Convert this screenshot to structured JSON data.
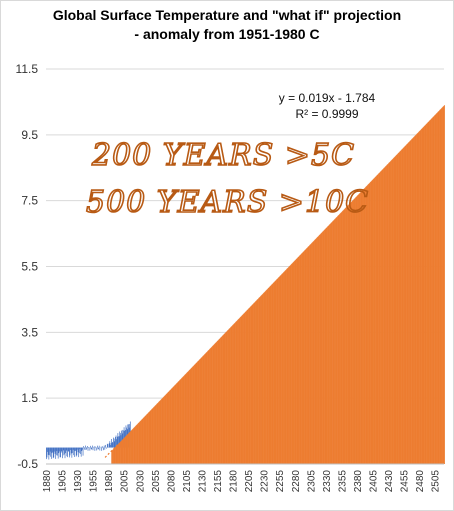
{
  "chart_data": {
    "type": "bar",
    "title": "Global Surface Temperature and \"what if\" projection",
    "subtitle": "- anomaly from 1951-1980 C",
    "y_ticks": [
      "-0.5",
      "1.5",
      "3.5",
      "5.5",
      "7.5",
      "9.5",
      "11.5"
    ],
    "ylim": [
      -0.5,
      11.5
    ],
    "x_ticks": [
      "1880",
      "1905",
      "1930",
      "1955",
      "1980",
      "2005",
      "2030",
      "2055",
      "2080",
      "2105",
      "2130",
      "2155",
      "2180",
      "2205",
      "2230",
      "2255",
      "2280",
      "2305",
      "2330",
      "2355",
      "2380",
      "2405",
      "2430",
      "2455",
      "2480",
      "2505"
    ],
    "xlim": [
      1880,
      2520
    ],
    "trendline": {
      "equation": "y = 0.019x - 1.784",
      "r_squared": "R² = 0.9999",
      "slope_per_year": 0.019,
      "start_year": 1990,
      "start_value": 0.0
    },
    "series": [
      {
        "color": "#4472c4",
        "x_range": [
          1880,
          2015
        ],
        "description_values": [
          -0.2,
          0.8
        ]
      },
      {
        "color": "#ed7d31",
        "x_range": [
          1985,
          2520
        ],
        "values_end": [
          0.0,
          10.4
        ]
      }
    ],
    "annotations": [
      "200 YEARS >5C",
      "500 YEARS >10C"
    ],
    "grid": true
  }
}
